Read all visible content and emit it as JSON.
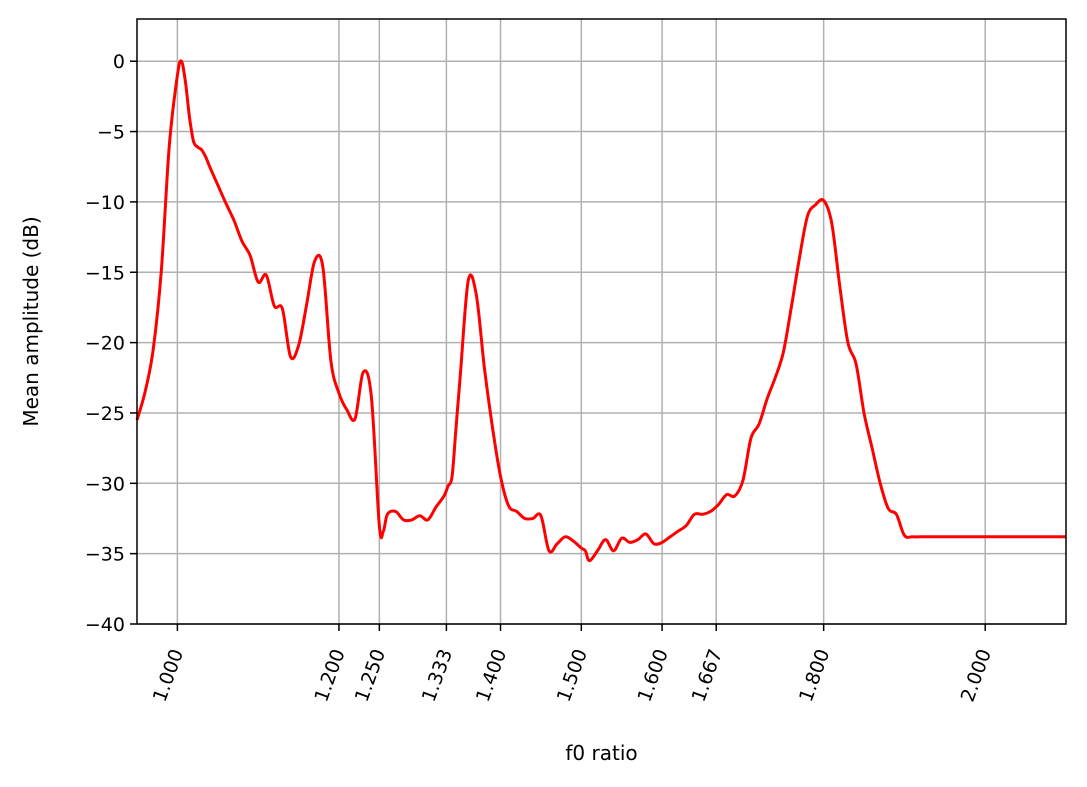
{
  "chart_data": {
    "type": "line",
    "xlabel": "f0 ratio",
    "ylabel": "Mean amplitude (dB)",
    "xlim": [
      0.95,
      2.1
    ],
    "ylim": [
      -40,
      3
    ],
    "grid": true,
    "x_ticks": [
      1.0,
      1.2,
      1.25,
      1.333,
      1.4,
      1.5,
      1.6,
      1.667,
      1.8,
      2.0
    ],
    "x_tick_labels": [
      "1.000",
      "1.200",
      "1.250",
      "1.333",
      "1.400",
      "1.500",
      "1.600",
      "1.667",
      "1.800",
      "2.000"
    ],
    "y_ticks": [
      0,
      -5,
      -10,
      -15,
      -20,
      -25,
      -30,
      -35,
      -40
    ],
    "y_tick_labels": [
      "0",
      "−5",
      "−10",
      "−15",
      "−20",
      "−25",
      "−30",
      "−35",
      "−40"
    ],
    "series": [
      {
        "color": "#ff0000",
        "x": [
          0.95,
          0.96,
          0.97,
          0.98,
          0.99,
          1.0,
          1.005,
          1.01,
          1.015,
          1.02,
          1.025,
          1.03,
          1.035,
          1.04,
          1.05,
          1.06,
          1.07,
          1.08,
          1.09,
          1.1,
          1.11,
          1.12,
          1.13,
          1.14,
          1.15,
          1.16,
          1.17,
          1.18,
          1.19,
          1.2,
          1.21,
          1.22,
          1.23,
          1.24,
          1.25,
          1.255,
          1.26,
          1.27,
          1.28,
          1.29,
          1.3,
          1.31,
          1.32,
          1.33,
          1.335,
          1.34,
          1.345,
          1.35,
          1.36,
          1.37,
          1.38,
          1.39,
          1.4,
          1.41,
          1.42,
          1.43,
          1.44,
          1.45,
          1.46,
          1.47,
          1.48,
          1.49,
          1.5,
          1.505,
          1.51,
          1.52,
          1.53,
          1.54,
          1.55,
          1.56,
          1.57,
          1.58,
          1.59,
          1.6,
          1.61,
          1.62,
          1.63,
          1.64,
          1.65,
          1.66,
          1.67,
          1.68,
          1.69,
          1.7,
          1.71,
          1.72,
          1.73,
          1.74,
          1.75,
          1.76,
          1.77,
          1.78,
          1.79,
          1.8,
          1.81,
          1.82,
          1.83,
          1.84,
          1.85,
          1.86,
          1.87,
          1.88,
          1.89,
          1.9,
          1.91,
          1.92,
          1.93,
          1.94,
          1.95,
          1.96,
          1.97,
          1.98,
          1.99,
          1.995,
          2.0,
          2.01,
          2.02,
          2.03,
          2.04,
          2.05,
          2.06,
          2.07,
          2.08,
          2.09,
          2.1
        ],
        "y": [
          -25.5,
          -23.5,
          -20.5,
          -15.0,
          -6.0,
          -1.0,
          0.0,
          -1.5,
          -4.0,
          -5.7,
          -6.1,
          -6.3,
          -6.8,
          -7.5,
          -8.8,
          -10.1,
          -11.3,
          -12.8,
          -13.8,
          -15.7,
          -15.2,
          -17.4,
          -17.6,
          -21.0,
          -20.2,
          -17.3,
          -14.2,
          -14.6,
          -21.3,
          -23.6,
          -24.8,
          -25.4,
          -22.1,
          -23.8,
          -33.0,
          -33.4,
          -32.2,
          -32.0,
          -32.6,
          -32.6,
          -32.3,
          -32.6,
          -31.7,
          -30.9,
          -30.2,
          -29.5,
          -26.0,
          -22.5,
          -15.6,
          -16.6,
          -21.8,
          -26.0,
          -29.5,
          -31.6,
          -32.0,
          -32.5,
          -32.5,
          -32.3,
          -34.8,
          -34.3,
          -33.8,
          -34.1,
          -34.6,
          -34.8,
          -35.5,
          -34.8,
          -34.0,
          -34.8,
          -33.9,
          -34.2,
          -34.0,
          -33.6,
          -34.3,
          -34.2,
          -33.8,
          -33.4,
          -33.0,
          -32.2,
          -32.2,
          -32.0,
          -31.5,
          -30.8,
          -30.9,
          -29.8,
          -26.8,
          -25.8,
          -24.0,
          -22.5,
          -20.7,
          -17.5,
          -14.0,
          -11.0,
          -10.2,
          -9.9,
          -11.5,
          -16.0,
          -20.0,
          -21.5,
          -25.0,
          -27.5,
          -30.0,
          -31.8,
          -32.2,
          -33.7,
          -33.8,
          -33.8,
          -33.8,
          -33.8,
          -33.8,
          -33.8,
          -33.8,
          -33.8,
          -33.8,
          -33.8,
          -33.8,
          -33.8,
          -33.8,
          -33.8,
          -33.8,
          -33.8,
          -33.8,
          -33.8,
          -33.8,
          -33.8,
          -33.8
        ]
      }
    ]
  }
}
